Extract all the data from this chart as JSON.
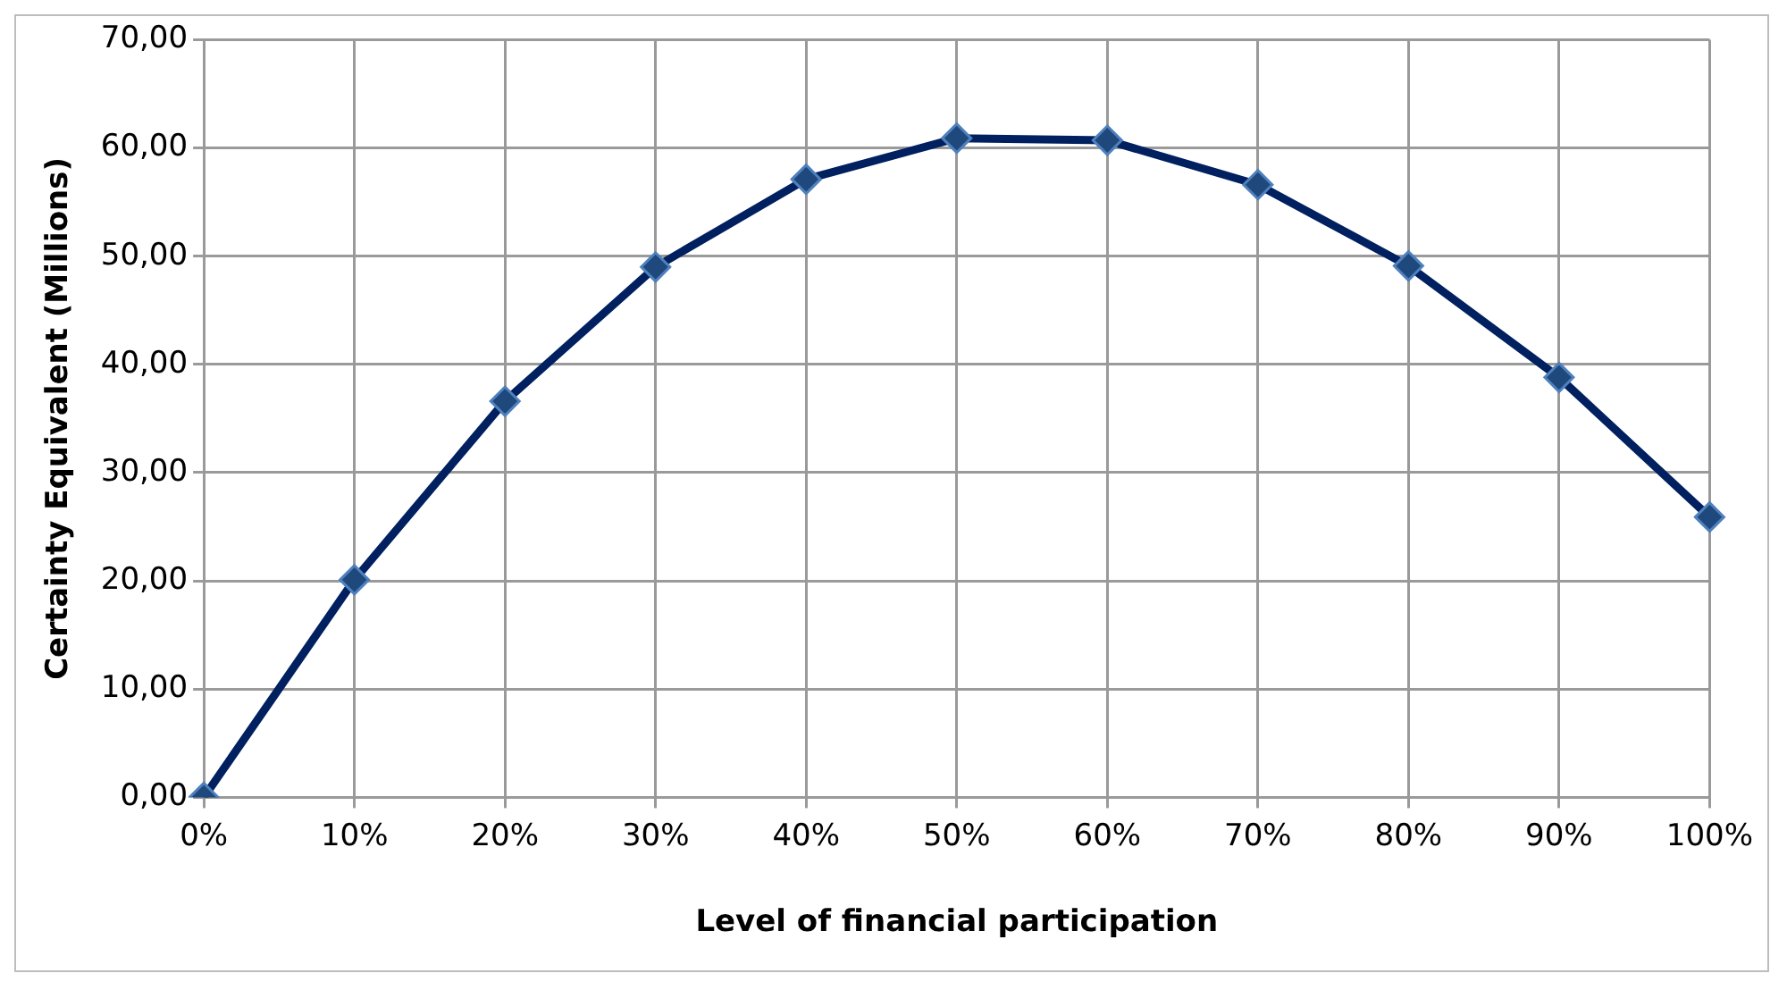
{
  "chart_data": {
    "type": "line",
    "xlabel": "Level of financial participation",
    "ylabel": "Certainty Equivalent (Millions)",
    "categories": [
      "0%",
      "10%",
      "20%",
      "30%",
      "40%",
      "50%",
      "60%",
      "70%",
      "80%",
      "90%",
      "100%"
    ],
    "series": [
      {
        "color": "#002060",
        "values": [
          0,
          20.1,
          36.6,
          49.0,
          57.1,
          60.9,
          60.7,
          56.6,
          49.1,
          38.8,
          25.9
        ]
      }
    ],
    "ylim": [
      0,
      70
    ],
    "yticks": [
      {
        "value": 0,
        "label": "0,00"
      },
      {
        "value": 10,
        "label": "10,00"
      },
      {
        "value": 20,
        "label": "20,00"
      },
      {
        "value": 30,
        "label": "30,00"
      },
      {
        "value": 40,
        "label": "40,00"
      },
      {
        "value": 50,
        "label": "50,00"
      },
      {
        "value": 60,
        "label": "60,00"
      },
      {
        "value": 70,
        "label": "70,00"
      }
    ],
    "grid": true,
    "legend": false,
    "marker": "diamond",
    "line_style": "solid"
  }
}
